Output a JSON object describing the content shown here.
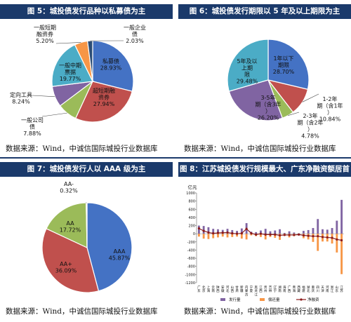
{
  "panels": {
    "p5": {
      "title": "图 5：城投债发行品种以私募债为主",
      "source": "数据来源：Wind，中诚信国际城投行业数据库"
    },
    "p6": {
      "title": "图 6：城投债发行期限以 5 年及以上期限为主",
      "source": "数据来源：Wind，中诚信国际城投行业数据库"
    },
    "p7": {
      "title": "图 7：城投债发行人以 AAA 级为主",
      "source": "数据来源：Wind，中诚信国际城投行业数据库"
    },
    "p8": {
      "title": "图 8：江苏城投债发行规模最大、广东净融资额居首",
      "source": "数据来源：Wind，中诚信国际城投行业数据库"
    }
  },
  "chart_data": [
    {
      "id": "p5",
      "type": "pie",
      "slices": [
        {
          "label": "私募债",
          "value": 28.93,
          "pct": "28.93%",
          "color": "#4472c4"
        },
        {
          "label": "超短期融资券",
          "value": 27.94,
          "pct": "27.94%",
          "color": "#c0504d"
        },
        {
          "label": "一般公司债",
          "value": 7.88,
          "pct": "7.88%",
          "color": "#9bbb59"
        },
        {
          "label": "定向工具",
          "value": 8.24,
          "pct": "8.24%",
          "color": "#8064a2"
        },
        {
          "label": "一般中期票据",
          "value": 19.77,
          "pct": "19.77%",
          "color": "#4bacc6"
        },
        {
          "label": "一般短期融资券",
          "value": 5.2,
          "pct": "5.20%",
          "color": "#f79646"
        },
        {
          "label": "一般企业债",
          "value": 2.03,
          "pct": "2.03%",
          "color": "#2c4d75"
        }
      ]
    },
    {
      "id": "p6",
      "type": "pie",
      "slices": [
        {
          "label": "1年以下期限",
          "value": 28.7,
          "pct": "28.70%",
          "color": "#4472c4"
        },
        {
          "label": "1-2年期（含1年）",
          "value": 10.84,
          "pct": "10.84%",
          "color": "#c0504d"
        },
        {
          "label": "2-3年期（含2年）",
          "value": 4.78,
          "pct": "4.78%",
          "color": "#9bbb59"
        },
        {
          "label": "3-5年期（含3年）",
          "value": 26.2,
          "pct": "26.20%",
          "color": "#8064a2"
        },
        {
          "label": "5年及以上期限",
          "value": 29.48,
          "pct": "29.48%",
          "color": "#4bacc6"
        }
      ]
    },
    {
      "id": "p7",
      "type": "pie",
      "slices": [
        {
          "label": "AAA",
          "value": 45.87,
          "pct": "45.87%",
          "color": "#4472c4"
        },
        {
          "label": "AA+",
          "value": 36.09,
          "pct": "36.09%",
          "color": "#c0504d"
        },
        {
          "label": "AA",
          "value": 17.72,
          "pct": "17.72%",
          "color": "#9bbb59"
        },
        {
          "label": "AA-",
          "value": 0.32,
          "pct": "0.32%",
          "color": "#8064a2"
        }
      ]
    },
    {
      "id": "p8",
      "type": "bar",
      "ylabel": "亿元",
      "ylim": [
        -1200,
        1000
      ],
      "yticks": [
        1000,
        800,
        600,
        400,
        200,
        0,
        -200,
        -400,
        -600,
        -800,
        -1000,
        -1200
      ],
      "categories": [
        "广东",
        "北京",
        "上海",
        "云南",
        "陕西",
        "安徽",
        "河北",
        "山西",
        "甘肃",
        "新疆",
        "内蒙古",
        "宁夏",
        "黑龙江",
        "江西",
        "贵州",
        "吉林",
        "辽宁",
        "湖南",
        "海南",
        "广西",
        "青海",
        "西藏",
        "福建",
        "湖北",
        "重庆",
        "四川",
        "天津",
        "河南",
        "浙江",
        "山东",
        "江苏"
      ],
      "series": [
        {
          "name": "发行量",
          "color": "#8064a2",
          "values": [
            200,
            190,
            160,
            120,
            110,
            95,
            120,
            90,
            70,
            130,
            260,
            50,
            40,
            80,
            120,
            60,
            80,
            110,
            20,
            60,
            30,
            10,
            70,
            90,
            140,
            360,
            110,
            100,
            140,
            320,
            830
          ]
        },
        {
          "name": "偿还量",
          "color": "#f79646",
          "values": [
            -70,
            -120,
            -130,
            -110,
            -90,
            -70,
            -90,
            -80,
            -70,
            -120,
            -140,
            -40,
            -60,
            -80,
            -140,
            -80,
            -100,
            -150,
            -50,
            -90,
            -60,
            -30,
            -110,
            -140,
            -200,
            -420,
            -190,
            -190,
            -240,
            -460,
            -990
          ]
        },
        {
          "name": "净融资",
          "color": "#8b1a1a",
          "values": [
            130,
            70,
            30,
            10,
            20,
            25,
            30,
            10,
            0,
            10,
            120,
            10,
            -20,
            0,
            -20,
            -20,
            -20,
            -40,
            -30,
            -30,
            -30,
            -20,
            -40,
            -50,
            -60,
            -60,
            -80,
            -90,
            -100,
            -140,
            -160
          ]
        }
      ]
    }
  ]
}
